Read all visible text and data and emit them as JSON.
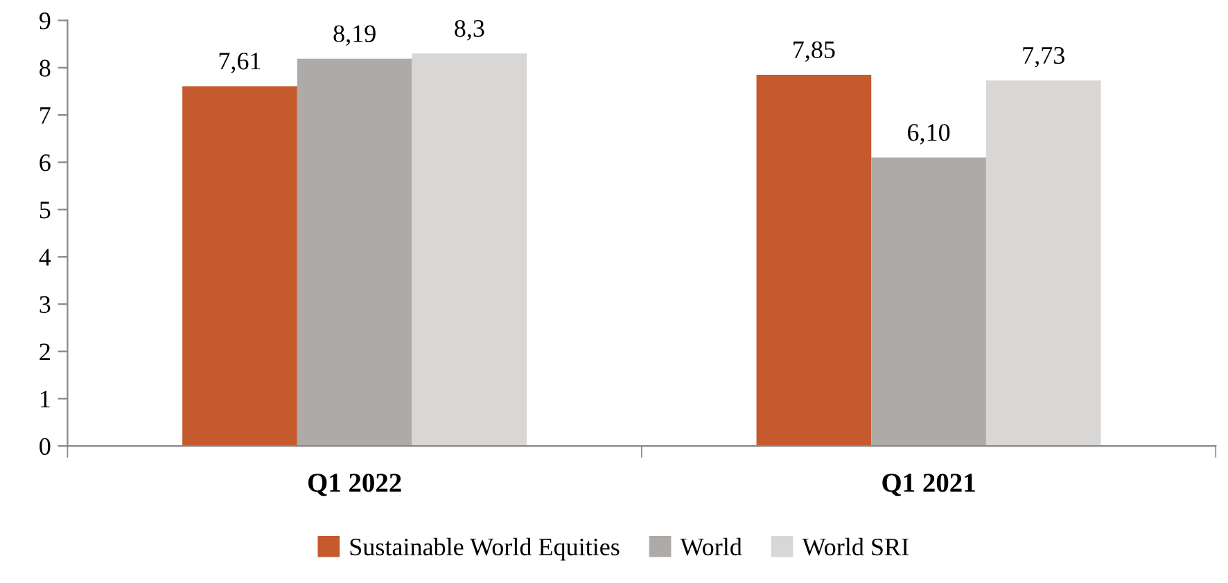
{
  "chart_data": {
    "type": "bar",
    "categories": [
      "Q1 2022",
      "Q1 2021"
    ],
    "series": [
      {
        "name": "Sustainable World Equities",
        "color": "#c55a2e",
        "values": [
          7.61,
          7.85
        ],
        "value_labels": [
          "7,61",
          "7,85"
        ]
      },
      {
        "name": "World",
        "color": "#aeaaa7",
        "values": [
          8.19,
          6.1
        ],
        "value_labels": [
          "8,19",
          "6,10"
        ]
      },
      {
        "name": "World SRI",
        "color": "#d9d7d5",
        "values": [
          8.3,
          7.73
        ],
        "value_labels": [
          "8,3",
          "7,73"
        ]
      }
    ],
    "ylim": [
      0,
      9
    ],
    "yticks": [
      0,
      1,
      2,
      3,
      4,
      5,
      6,
      7,
      8,
      9
    ],
    "grid": false,
    "legend": "bottom"
  }
}
